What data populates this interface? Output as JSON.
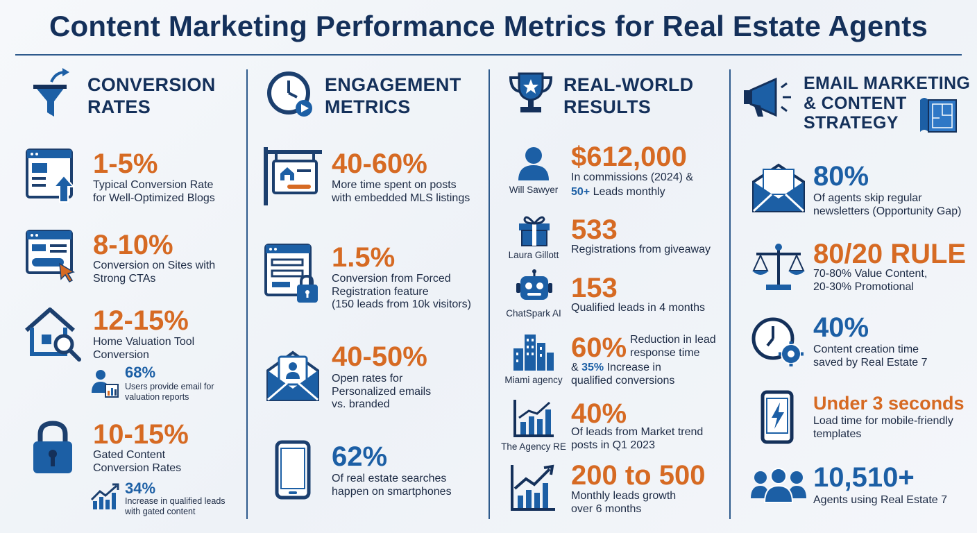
{
  "title": "Content Marketing Performance Metrics for Real Estate Agents",
  "columns": {
    "conversion": {
      "heading": "CONVERSION\nRATES",
      "icon": "funnel-icon",
      "items": [
        {
          "value": "1-5%",
          "text": "Typical Conversion Rate\nfor Well-Optimized Blogs",
          "icon": "blog-upload-icon"
        },
        {
          "value": "8-10%",
          "text": "Conversion on Sites with\nStrong CTAs",
          "icon": "cta-click-icon"
        },
        {
          "value": "12-15%",
          "text": "Home Valuation Tool\nConversion",
          "icon": "house-search-icon",
          "sub": {
            "value": "68%",
            "text": "Users provide email for\nvaluation reports",
            "icon": "user-chart-icon"
          }
        },
        {
          "value": "10-15%",
          "text": "Gated Content\nConversion Rates",
          "icon": "padlock-icon",
          "sub": {
            "value": "34%",
            "text": "Increase in qualified leads\nwith gated content",
            "icon": "growth-chart-icon"
          }
        }
      ]
    },
    "engagement": {
      "heading": "ENGAGEMENT\nMETRICS",
      "icon": "clock-play-icon",
      "items": [
        {
          "value": "40-60%",
          "text": "More time spent on posts\nwith embedded MLS listings",
          "icon": "listing-sign-icon"
        },
        {
          "value": "1.5%",
          "text": "Conversion from Forced\nRegistration feature\n(150 leads from 10k visitors)",
          "icon": "form-lock-icon"
        },
        {
          "value": "40-50%",
          "text": "Open rates for\nPersonalized emails\nvs. branded",
          "icon": "email-person-icon"
        },
        {
          "value": "62%",
          "text": "Of real estate searches\nhappen on smartphones",
          "icon": "smartphone-icon"
        }
      ]
    },
    "results": {
      "heading": "REAL-WORLD\nRESULTS",
      "icon": "trophy-icon",
      "items": [
        {
          "name": "Will Sawyer",
          "value": "$612,000",
          "text_a": "In commissions (2024) &",
          "inline_value": "50+",
          "text_b": "Leads monthly",
          "icon": "person-icon"
        },
        {
          "name": "Laura Gillott",
          "value": "533",
          "text": "Registrations from giveaway",
          "icon": "gift-icon"
        },
        {
          "name": "ChatSpark AI",
          "value": "153",
          "text": "Qualified leads in 4 months",
          "icon": "robot-icon"
        },
        {
          "name": "Miami agency",
          "value": "60%",
          "side_text": "Reduction in lead\nresponse time",
          "text_pre": "&",
          "inline_value": "35%",
          "text_b": "Increase in\nqualified conversions",
          "icon": "city-icon"
        },
        {
          "name": "The Agency RE",
          "value": "40%",
          "text": "Of leads from Market trend\nposts in Q1 2023",
          "icon": "bar-chart-icon"
        },
        {
          "name": "",
          "value": "200 to 500",
          "text": "Monthly leads growth\nover 6 months",
          "icon": "trend-up-icon"
        }
      ]
    },
    "email": {
      "heading": "EMAIL MARKETING\n& CONTENT\nSTRATEGY",
      "icon": "megaphone-icon",
      "items": [
        {
          "value": "80%",
          "text": "Of agents skip regular\nnewsletters (Opportunity Gap)",
          "icon": "envelope-icon",
          "color": "blue"
        },
        {
          "value": "80/20 RULE",
          "text": "70-80% Value Content,\n20-30% Promotional",
          "icon": "scale-icon",
          "color": "orange"
        },
        {
          "value": "40%",
          "text": "Content creation time\nsaved by Real Estate 7",
          "icon": "clock-gear-icon",
          "color": "blue"
        },
        {
          "value": "Under 3 seconds",
          "text": "Load time for mobile-friendly\ntemplates",
          "icon": "phone-bolt-icon",
          "color": "orange"
        },
        {
          "value": "10,510+",
          "text": "Agents using Real Estate 7",
          "icon": "people-icon",
          "color": "blue"
        }
      ]
    }
  },
  "colors": {
    "navy": "#14305a",
    "orange": "#d66a23",
    "blue": "#1c5fa5"
  }
}
